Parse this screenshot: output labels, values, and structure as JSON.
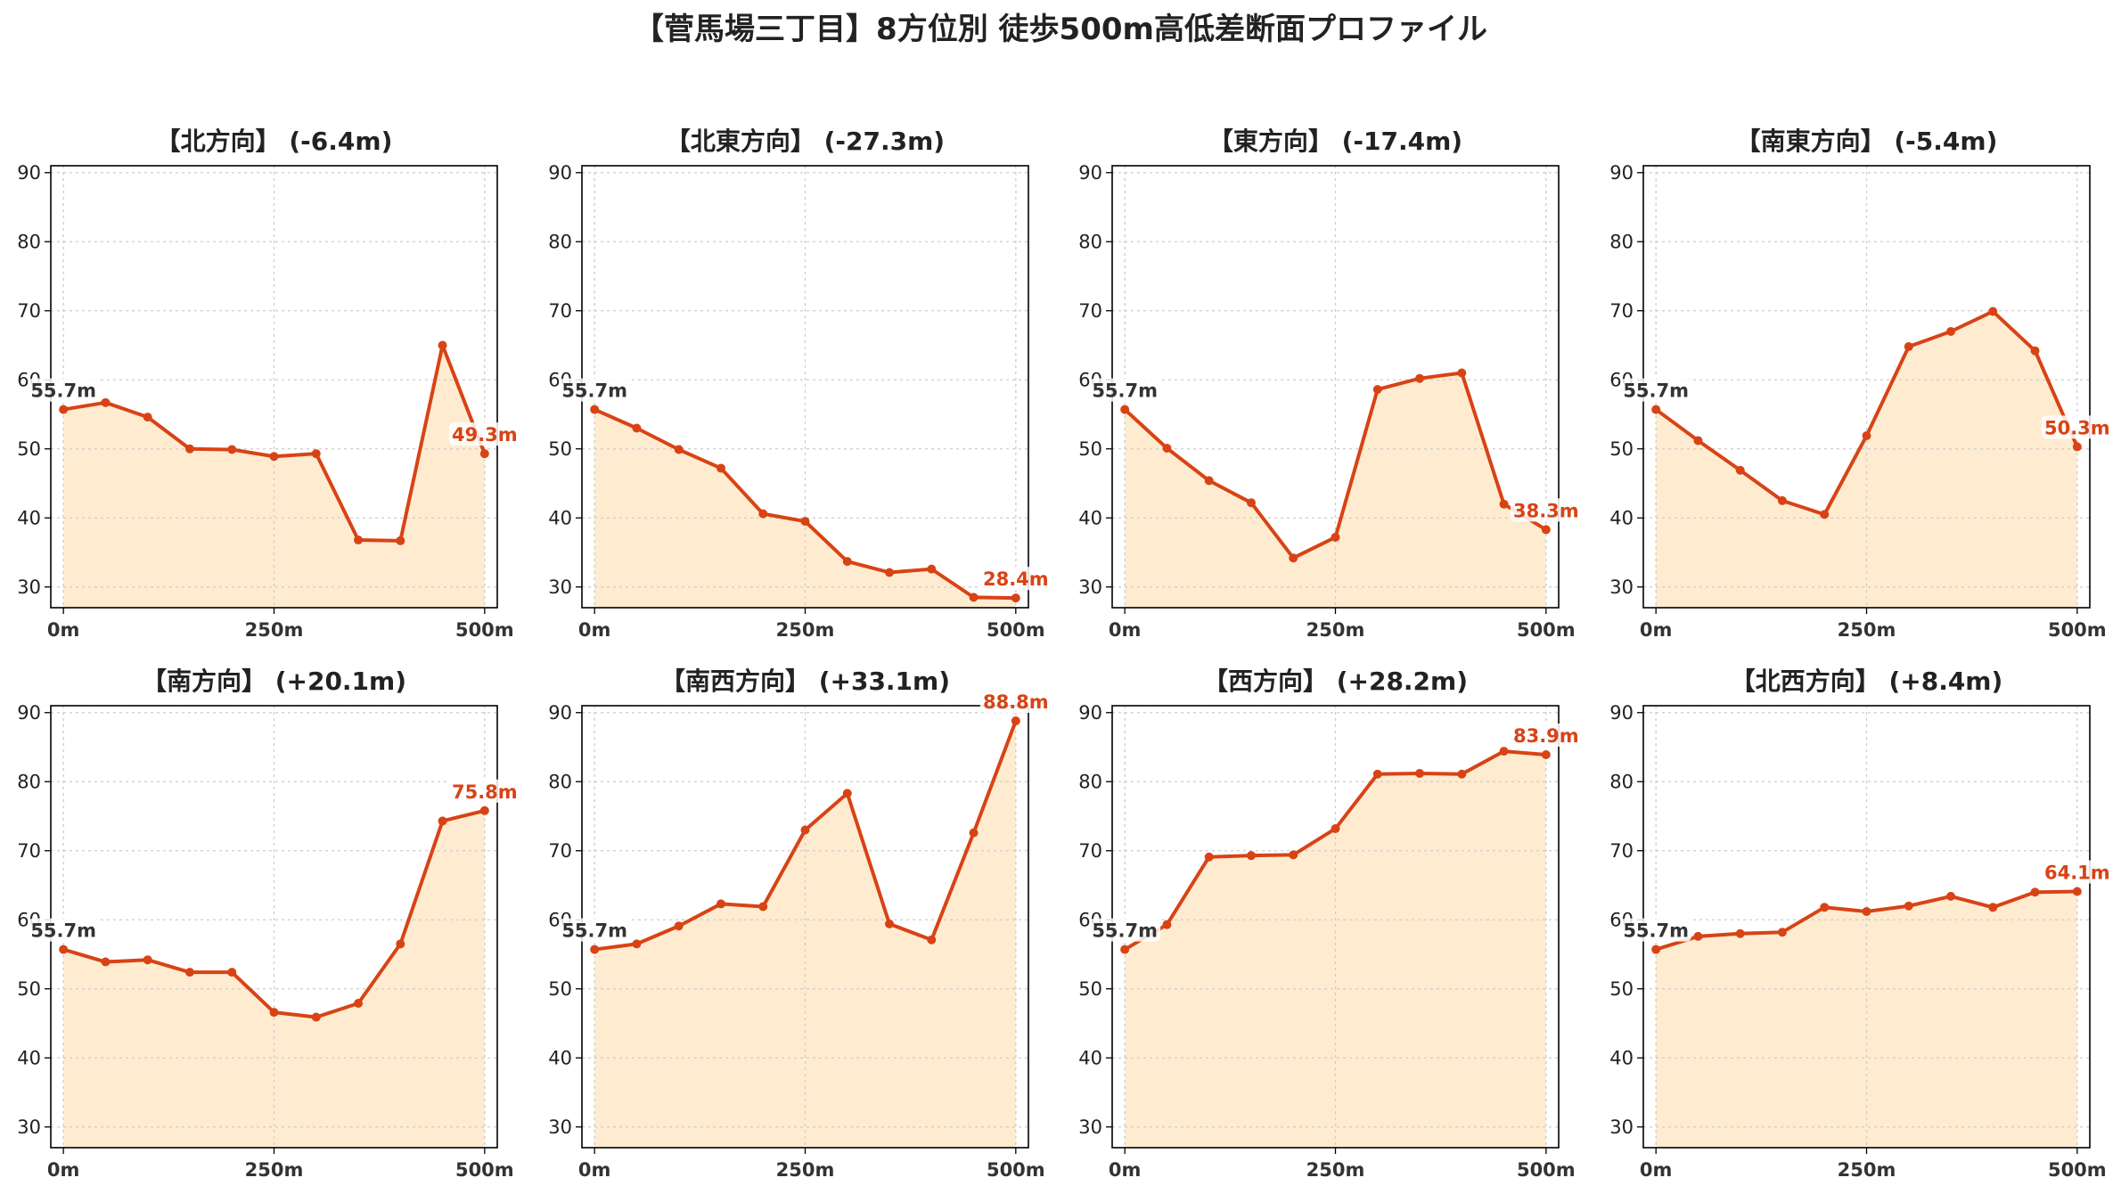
{
  "title": "【菅馬場三丁目】8方位別 徒歩500m高低差断面プロファイル",
  "colors": {
    "line": "#d84315",
    "fill": "#ffecd0",
    "grid": "#cccccc",
    "start_label": "#333333"
  },
  "chart_data": [
    {
      "type": "area",
      "title": "【北方向】 (-6.4m)",
      "x": [
        0,
        50,
        100,
        150,
        200,
        250,
        300,
        350,
        400,
        450,
        500
      ],
      "values": [
        55.7,
        56.7,
        54.6,
        50.0,
        49.9,
        48.9,
        49.3,
        36.8,
        36.7,
        65.0,
        49.3
      ],
      "start_label": "55.7m",
      "end_label": "49.3m",
      "ylim": [
        27,
        91
      ],
      "yticks": [
        30,
        40,
        50,
        60,
        70,
        80,
        90
      ],
      "xticks": [
        "0m",
        "250m",
        "500m"
      ],
      "grid": true
    },
    {
      "type": "area",
      "title": "【北東方向】 (-27.3m)",
      "x": [
        0,
        50,
        100,
        150,
        200,
        250,
        300,
        350,
        400,
        450,
        500
      ],
      "values": [
        55.7,
        53.0,
        49.9,
        47.2,
        40.6,
        39.5,
        33.7,
        32.1,
        32.6,
        28.5,
        28.4
      ],
      "start_label": "55.7m",
      "end_label": "28.4m",
      "ylim": [
        27,
        91
      ],
      "yticks": [
        30,
        40,
        50,
        60,
        70,
        80,
        90
      ],
      "xticks": [
        "0m",
        "250m",
        "500m"
      ],
      "grid": true
    },
    {
      "type": "area",
      "title": "【東方向】 (-17.4m)",
      "x": [
        0,
        50,
        100,
        150,
        200,
        250,
        300,
        350,
        400,
        450,
        500
      ],
      "values": [
        55.7,
        50.1,
        45.4,
        42.2,
        34.2,
        37.2,
        58.6,
        60.2,
        61.0,
        42.0,
        38.3
      ],
      "start_label": "55.7m",
      "end_label": "38.3m",
      "ylim": [
        27,
        91
      ],
      "yticks": [
        30,
        40,
        50,
        60,
        70,
        80,
        90
      ],
      "xticks": [
        "0m",
        "250m",
        "500m"
      ],
      "grid": true
    },
    {
      "type": "area",
      "title": "【南東方向】 (-5.4m)",
      "x": [
        0,
        50,
        100,
        150,
        200,
        250,
        300,
        350,
        400,
        450,
        500
      ],
      "values": [
        55.7,
        51.2,
        46.9,
        42.5,
        40.5,
        51.9,
        64.8,
        67.0,
        69.9,
        64.2,
        50.3
      ],
      "start_label": "55.7m",
      "end_label": "50.3m",
      "ylim": [
        27,
        91
      ],
      "yticks": [
        30,
        40,
        50,
        60,
        70,
        80,
        90
      ],
      "xticks": [
        "0m",
        "250m",
        "500m"
      ],
      "grid": true
    },
    {
      "type": "area",
      "title": "【南方向】 (+20.1m)",
      "x": [
        0,
        50,
        100,
        150,
        200,
        250,
        300,
        350,
        400,
        450,
        500
      ],
      "values": [
        55.7,
        53.9,
        54.2,
        52.4,
        52.4,
        46.6,
        45.9,
        47.9,
        56.5,
        74.3,
        75.8
      ],
      "start_label": "55.7m",
      "end_label": "75.8m",
      "ylim": [
        27,
        91
      ],
      "yticks": [
        30,
        40,
        50,
        60,
        70,
        80,
        90
      ],
      "xticks": [
        "0m",
        "250m",
        "500m"
      ],
      "grid": true
    },
    {
      "type": "area",
      "title": "【南西方向】 (+33.1m)",
      "x": [
        0,
        50,
        100,
        150,
        200,
        250,
        300,
        350,
        400,
        450,
        500
      ],
      "values": [
        55.7,
        56.5,
        59.1,
        62.3,
        61.9,
        73.0,
        78.3,
        59.4,
        57.1,
        72.6,
        88.8
      ],
      "start_label": "55.7m",
      "end_label": "88.8m",
      "ylim": [
        27,
        91
      ],
      "yticks": [
        30,
        40,
        50,
        60,
        70,
        80,
        90
      ],
      "xticks": [
        "0m",
        "250m",
        "500m"
      ],
      "grid": true
    },
    {
      "type": "area",
      "title": "【西方向】 (+28.2m)",
      "x": [
        0,
        50,
        100,
        150,
        200,
        250,
        300,
        350,
        400,
        450,
        500
      ],
      "values": [
        55.7,
        59.3,
        69.1,
        69.3,
        69.4,
        73.2,
        81.1,
        81.2,
        81.1,
        84.4,
        83.9
      ],
      "start_label": "55.7m",
      "end_label": "83.9m",
      "ylim": [
        27,
        91
      ],
      "yticks": [
        30,
        40,
        50,
        60,
        70,
        80,
        90
      ],
      "xticks": [
        "0m",
        "250m",
        "500m"
      ],
      "grid": true
    },
    {
      "type": "area",
      "title": "【北西方向】 (+8.4m)",
      "x": [
        0,
        50,
        100,
        150,
        200,
        250,
        300,
        350,
        400,
        450,
        500
      ],
      "values": [
        55.7,
        57.6,
        58.0,
        58.2,
        61.8,
        61.2,
        62.0,
        63.4,
        61.8,
        64.0,
        64.1
      ],
      "start_label": "55.7m",
      "end_label": "64.1m",
      "ylim": [
        27,
        91
      ],
      "yticks": [
        30,
        40,
        50,
        60,
        70,
        80,
        90
      ],
      "xticks": [
        "0m",
        "250m",
        "500m"
      ],
      "grid": true
    }
  ]
}
